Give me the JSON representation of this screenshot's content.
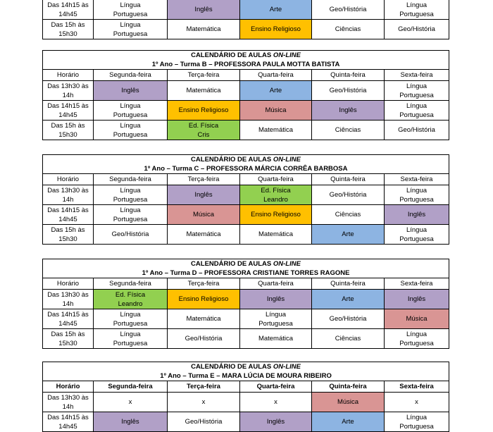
{
  "title_prefix": "CALENDÁRIO DE AULAS ",
  "title_online": "ON-LINE",
  "day_headers": [
    "Horário",
    "Segunda-feira",
    "Terça-feira",
    "Quarta-feira",
    "Quinta-feira",
    "Sexta-feira"
  ],
  "colors": {
    "purple": "#b1a0c7",
    "blue": "#8db4e2",
    "orange": "#ffc000",
    "green": "#92d050",
    "pink": "#d99594"
  },
  "tables": [
    {
      "name": "turma-a-partial",
      "show_title": false,
      "show_header": false,
      "bold_header": false,
      "subtitle": "",
      "rows": [
        {
          "time": "Das 14h15 às\n14h45",
          "cells": [
            {
              "text": "Língua\nPortuguesa",
              "fill": "none"
            },
            {
              "text": "Inglês",
              "fill": "purple"
            },
            {
              "text": "Arte",
              "fill": "blue"
            },
            {
              "text": "Geo/História",
              "fill": "none"
            },
            {
              "text": "Língua\nPortuguesa",
              "fill": "none"
            }
          ]
        },
        {
          "time": "Das 15h às\n15h30",
          "cells": [
            {
              "text": "Língua\nPortuguesa",
              "fill": "none"
            },
            {
              "text": "Matemática",
              "fill": "none"
            },
            {
              "text": "Ensino Religioso",
              "fill": "orange"
            },
            {
              "text": "Ciências",
              "fill": "none"
            },
            {
              "text": "Geo/História",
              "fill": "none"
            }
          ]
        }
      ]
    },
    {
      "name": "turma-b",
      "show_title": true,
      "show_header": true,
      "bold_header": false,
      "subtitle": "1º Ano – Turma B – PROFESSORA PAULA MOTTA BATISTA",
      "rows": [
        {
          "time": "Das 13h30 às\n14h",
          "cells": [
            {
              "text": "Inglês",
              "fill": "purple"
            },
            {
              "text": "Matemática",
              "fill": "none"
            },
            {
              "text": "Arte",
              "fill": "blue"
            },
            {
              "text": "Geo/História",
              "fill": "none"
            },
            {
              "text": "Língua\nPortuguesa",
              "fill": "none"
            }
          ]
        },
        {
          "time": "Das 14h15 às\n14h45",
          "cells": [
            {
              "text": "Língua\nPortuguesa",
              "fill": "none"
            },
            {
              "text": "Ensino Religioso",
              "fill": "orange"
            },
            {
              "text": "Música",
              "fill": "pink"
            },
            {
              "text": "Inglês",
              "fill": "purple"
            },
            {
              "text": "Língua\nPortuguesa",
              "fill": "none"
            }
          ]
        },
        {
          "time": "Das 15h às\n15h30",
          "cells": [
            {
              "text": "Língua\nPortuguesa",
              "fill": "none"
            },
            {
              "text": "Ed. Física\nCris",
              "fill": "green"
            },
            {
              "text": "Matemática",
              "fill": "none"
            },
            {
              "text": "Ciências",
              "fill": "none"
            },
            {
              "text": "Geo/História",
              "fill": "none"
            }
          ]
        }
      ]
    },
    {
      "name": "turma-c",
      "show_title": true,
      "show_header": true,
      "bold_header": false,
      "subtitle": "1º Ano – Turma C – PROFESSORA MÁRCIA CORRÊA BARBOSA",
      "rows": [
        {
          "time": "Das 13h30 às\n14h",
          "cells": [
            {
              "text": "Língua\nPortuguesa",
              "fill": "none"
            },
            {
              "text": "Inglês",
              "fill": "purple"
            },
            {
              "text": "Ed. Física\nLeandro",
              "fill": "green"
            },
            {
              "text": "Geo/História",
              "fill": "none"
            },
            {
              "text": "Língua\nPortuguesa",
              "fill": "none"
            }
          ]
        },
        {
          "time": "Das 14h15 às\n14h45",
          "cells": [
            {
              "text": "Língua\nPortuguesa",
              "fill": "none"
            },
            {
              "text": "Música",
              "fill": "pink"
            },
            {
              "text": "Ensino Religioso",
              "fill": "orange"
            },
            {
              "text": "Ciências",
              "fill": "none"
            },
            {
              "text": "Inglês",
              "fill": "purple"
            }
          ]
        },
        {
          "time": "Das 15h às\n15h30",
          "cells": [
            {
              "text": "Geo/História",
              "fill": "none"
            },
            {
              "text": "Matemática",
              "fill": "none"
            },
            {
              "text": "Matemática",
              "fill": "none"
            },
            {
              "text": "Arte",
              "fill": "blue"
            },
            {
              "text": "Língua\nPortuguesa",
              "fill": "none"
            }
          ]
        }
      ]
    },
    {
      "name": "turma-d",
      "show_title": true,
      "show_header": true,
      "bold_header": false,
      "subtitle": "1º Ano – Turma D – PROFESSORA CRISTIANE TORRES RAGONE",
      "rows": [
        {
          "time": "Das 13h30 às\n14h",
          "cells": [
            {
              "text": "Ed. Física\nLeandro",
              "fill": "green"
            },
            {
              "text": "Ensino Religioso",
              "fill": "orange"
            },
            {
              "text": "Inglês",
              "fill": "purple"
            },
            {
              "text": "Arte",
              "fill": "blue"
            },
            {
              "text": "Inglês",
              "fill": "purple"
            }
          ]
        },
        {
          "time": "Das 14h15 às\n14h45",
          "cells": [
            {
              "text": "Língua\nPortuguesa",
              "fill": "none"
            },
            {
              "text": "Matemática",
              "fill": "none"
            },
            {
              "text": "Língua\nPortuguesa",
              "fill": "none"
            },
            {
              "text": "Geo/História",
              "fill": "none"
            },
            {
              "text": "Música",
              "fill": "pink"
            }
          ]
        },
        {
          "time": "Das 15h às\n15h30",
          "cells": [
            {
              "text": "Língua\nPortuguesa",
              "fill": "none"
            },
            {
              "text": "Geo/História",
              "fill": "none"
            },
            {
              "text": "Matemática",
              "fill": "none"
            },
            {
              "text": "Ciências",
              "fill": "none"
            },
            {
              "text": "Língua\nPortuguesa",
              "fill": "none"
            }
          ]
        }
      ]
    },
    {
      "name": "turma-e",
      "show_title": true,
      "show_header": true,
      "bold_header": true,
      "subtitle": "1º Ano – Turma E – MARA LÚCIA DE MOURA RIBEIRO",
      "rows": [
        {
          "time": "Das 13h30 às\n14h",
          "cells": [
            {
              "text": "x",
              "fill": "none"
            },
            {
              "text": "x",
              "fill": "none"
            },
            {
              "text": "x",
              "fill": "none"
            },
            {
              "text": "Música",
              "fill": "pink"
            },
            {
              "text": "x",
              "fill": "none"
            }
          ]
        },
        {
          "time": "Das 14h15 às\n14h45",
          "cells": [
            {
              "text": "Inglês",
              "fill": "purple"
            },
            {
              "text": "Geo/História",
              "fill": "none"
            },
            {
              "text": "Inglês",
              "fill": "purple"
            },
            {
              "text": "Arte",
              "fill": "blue"
            },
            {
              "text": "Língua\nPortuguesa",
              "fill": "none"
            }
          ]
        }
      ]
    }
  ]
}
